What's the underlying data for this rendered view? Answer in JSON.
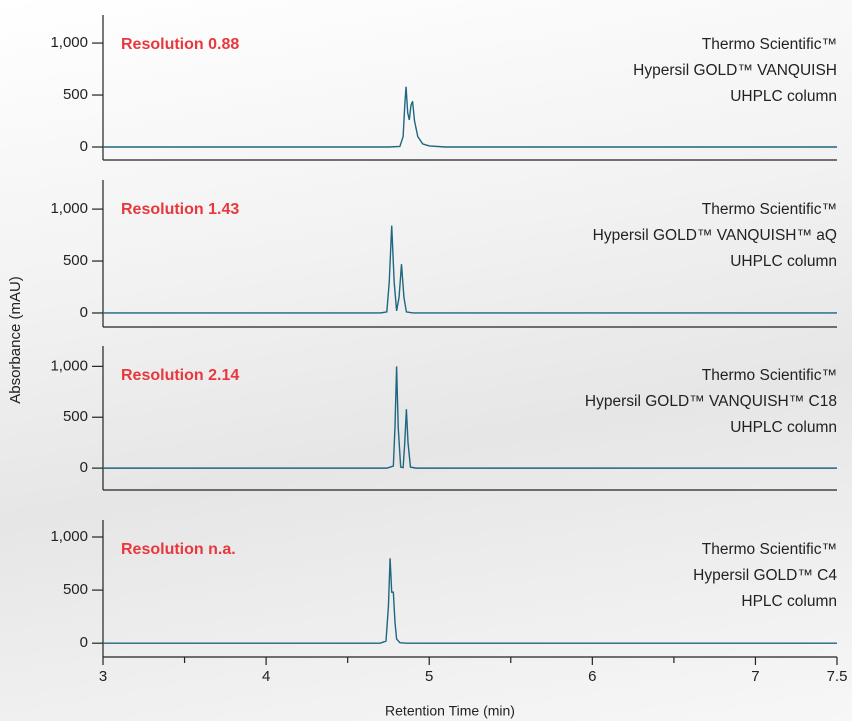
{
  "ylabel": "Absorbance (mAU)",
  "chart_data": [
    {
      "type": "line",
      "annotation": "Resolution 0.88",
      "annotation_color": "#e8383d",
      "description": [
        "Thermo Scientific™",
        "Hypersil GOLD™ VANQUISH",
        "UHPLC column"
      ],
      "xlim": [
        3,
        7.5
      ],
      "ylim": [
        -125,
        1270
      ],
      "yticks": [
        {
          "value": 1000,
          "label": "1,000"
        },
        500,
        0
      ],
      "x": [
        3,
        4.75,
        4.82,
        4.84,
        4.85,
        4.858,
        4.868,
        4.878,
        4.888,
        4.898,
        4.91,
        4.93,
        4.96,
        5.0,
        5.1,
        7.5
      ],
      "series": [
        {
          "color": "#1f6680",
          "values": [
            0,
            0,
            5,
            100,
            400,
            580,
            330,
            260,
            400,
            440,
            250,
            100,
            30,
            10,
            0,
            0
          ]
        }
      ]
    },
    {
      "type": "line",
      "annotation": "Resolution 1.43",
      "annotation_color": "#e8383d",
      "description": [
        "Thermo Scientific™",
        "Hypersil GOLD™ VANQUISH™ aQ",
        "UHPLC column"
      ],
      "xlim": [
        3,
        7.5
      ],
      "ylim": [
        -135,
        1280
      ],
      "yticks": [
        {
          "value": 1000,
          "label": "1,000"
        },
        500,
        0
      ],
      "x": [
        3,
        4.7,
        4.74,
        4.755,
        4.77,
        4.785,
        4.8,
        4.815,
        4.83,
        4.845,
        4.86,
        4.9,
        7.5
      ],
      "series": [
        {
          "color": "#1f6680",
          "values": [
            0,
            0,
            10,
            300,
            840,
            300,
            20,
            150,
            470,
            150,
            10,
            0,
            0
          ]
        }
      ]
    },
    {
      "type": "line",
      "annotation": "Resolution 2.14",
      "annotation_color": "#e8383d",
      "description": [
        "Thermo Scientific™",
        "Hypersil GOLD™ VANQUISH™ C18",
        "UHPLC column"
      ],
      "xlim": [
        3,
        7.5
      ],
      "ylim": [
        -215,
        1200
      ],
      "yticks": [
        {
          "value": 1000,
          "label": "1,000"
        },
        500,
        0
      ],
      "x": [
        3,
        4.74,
        4.78,
        4.79,
        4.8,
        4.81,
        4.825,
        4.84,
        4.85,
        4.86,
        4.87,
        4.885,
        4.92,
        7.5
      ],
      "series": [
        {
          "color": "#1f6680",
          "values": [
            0,
            0,
            20,
            400,
            1000,
            400,
            10,
            5,
            250,
            580,
            250,
            10,
            0,
            0
          ]
        }
      ]
    },
    {
      "type": "line",
      "annotation": "Resolution n.a.",
      "annotation_color": "#e8383d",
      "description": [
        "Thermo Scientific™",
        "Hypersil GOLD™ C4",
        "HPLC column"
      ],
      "xlim": [
        3,
        7.5
      ],
      "ylim": [
        -130,
        1160
      ],
      "yticks": [
        {
          "value": 1000,
          "label": "1,000"
        },
        500,
        0
      ],
      "xticks": [
        3,
        4,
        5,
        6,
        7,
        7.5
      ],
      "xminor": [
        3.5,
        4.5,
        5.5,
        6.5
      ],
      "xlabel": "Retention Time (min)",
      "x": [
        3,
        4.7,
        4.735,
        4.75,
        4.76,
        4.77,
        4.78,
        4.79,
        4.8,
        4.82,
        4.86,
        7.5
      ],
      "series": [
        {
          "color": "#1f6680",
          "values": [
            0,
            0,
            20,
            350,
            800,
            480,
            480,
            200,
            40,
            5,
            0,
            0
          ]
        }
      ]
    }
  ]
}
